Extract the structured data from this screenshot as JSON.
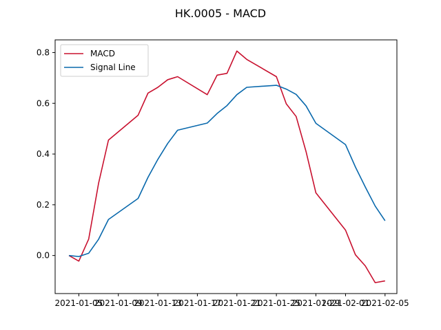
{
  "chart_data": {
    "type": "line",
    "title": "HK.0005 - MACD",
    "xlabel": "",
    "ylabel": "",
    "x": [
      "2021-01-04",
      "2021-01-05",
      "2021-01-06",
      "2021-01-07",
      "2021-01-08",
      "2021-01-11",
      "2021-01-12",
      "2021-01-13",
      "2021-01-14",
      "2021-01-15",
      "2021-01-18",
      "2021-01-19",
      "2021-01-20",
      "2021-01-21",
      "2021-01-22",
      "2021-01-25",
      "2021-01-26",
      "2021-01-27",
      "2021-01-28",
      "2021-01-29",
      "2021-02-01",
      "2021-02-02",
      "2021-02-03",
      "2021-02-04",
      "2021-02-05"
    ],
    "x_ticks": [
      "2021-01-05",
      "2021-01-09",
      "2021-01-13",
      "2021-01-17",
      "2021-01-21",
      "2021-01-25",
      "2021-01-29",
      "2021-02-01",
      "2021-02-05"
    ],
    "ylim": [
      -0.15,
      0.85
    ],
    "y_ticks": [
      "0.0",
      "0.2",
      "0.4",
      "0.6",
      "0.8"
    ],
    "grid": false,
    "legend_position": "upper-left",
    "series": [
      {
        "name": "MACD",
        "color": "#c8102e",
        "values": [
          0.0,
          -0.022,
          0.065,
          0.285,
          0.455,
          0.553,
          0.64,
          0.663,
          0.693,
          0.705,
          0.634,
          0.711,
          0.718,
          0.806,
          0.773,
          0.705,
          0.598,
          0.548,
          0.41,
          0.247,
          0.1,
          0.003,
          -0.041,
          -0.107,
          -0.1
        ]
      },
      {
        "name": "Signal Line",
        "color": "#0868ac",
        "values": [
          0.0,
          -0.004,
          0.009,
          0.064,
          0.142,
          0.225,
          0.308,
          0.379,
          0.442,
          0.494,
          0.522,
          0.56,
          0.591,
          0.634,
          0.663,
          0.671,
          0.656,
          0.635,
          0.59,
          0.521,
          0.437,
          0.349,
          0.27,
          0.195,
          0.137
        ]
      }
    ]
  }
}
